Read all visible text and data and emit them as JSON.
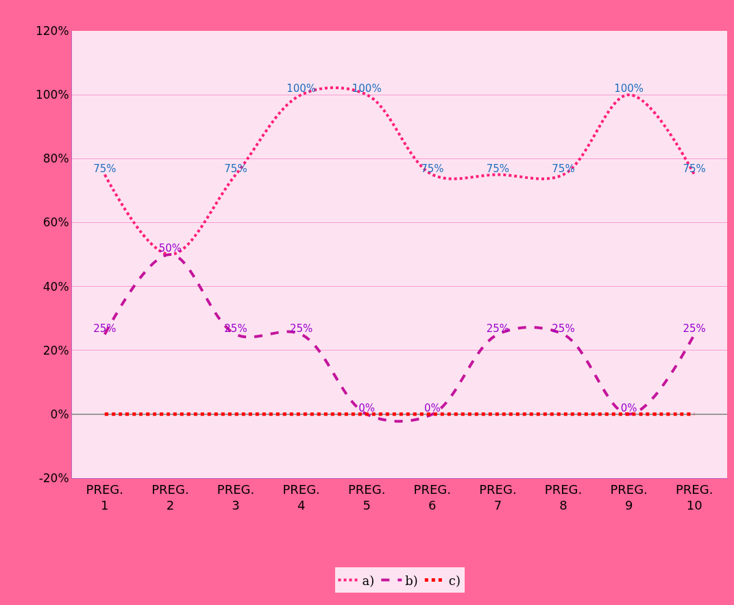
{
  "chart_data": {
    "type": "line",
    "categories": [
      "PREG. 1",
      "PREG. 2",
      "PREG. 3",
      "PREG. 4",
      "PREG. 5",
      "PREG. 6",
      "PREG. 7",
      "PREG. 8",
      "PREG. 9",
      "PREG. 10"
    ],
    "series": [
      {
        "name": "a)",
        "color": "#ff1f7a",
        "line_style": "dotted",
        "values": [
          75,
          50,
          75,
          100,
          100,
          75,
          75,
          75,
          100,
          75
        ],
        "value_labels": [
          "75%",
          null,
          "75%",
          "100%",
          "100%",
          "75%",
          "75%",
          "75%",
          "100%",
          "75%"
        ]
      },
      {
        "name": "b)",
        "color": "#c4149c",
        "line_style": "dashed",
        "values": [
          25,
          50,
          25,
          25,
          0,
          0,
          25,
          25,
          0,
          25
        ],
        "value_labels": [
          "25%",
          "50%",
          "25%",
          "25%",
          "0%",
          "0%",
          "25%",
          "25%",
          "0%",
          "25%"
        ]
      },
      {
        "name": "c)",
        "color": "#ff0000",
        "line_style": "dotted",
        "values": [
          0,
          0,
          0,
          0,
          0,
          0,
          0,
          0,
          0,
          0
        ]
      }
    ],
    "ylim": [
      -20,
      120
    ],
    "yticks": [
      {
        "value": -20,
        "label": "-20%"
      },
      {
        "value": 0,
        "label": "0%"
      },
      {
        "value": 20,
        "label": "20%"
      },
      {
        "value": 40,
        "label": "40%"
      },
      {
        "value": 60,
        "label": "60%"
      },
      {
        "value": 80,
        "label": "80%"
      },
      {
        "value": 100,
        "label": "100%"
      },
      {
        "value": 120,
        "label": "120%"
      }
    ],
    "grid": "y",
    "legend": "bottom",
    "marker": "none"
  }
}
